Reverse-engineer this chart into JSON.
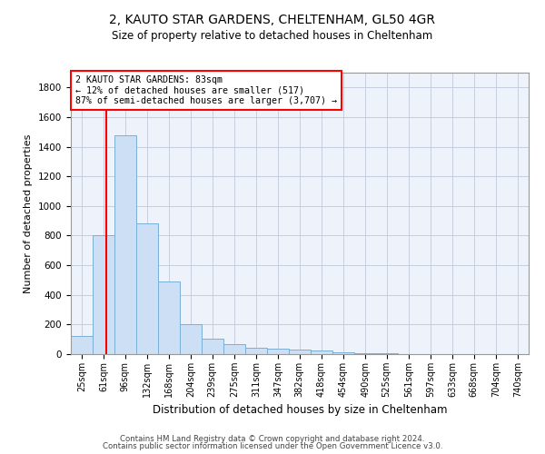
{
  "title": "2, KAUTO STAR GARDENS, CHELTENHAM, GL50 4GR",
  "subtitle": "Size of property relative to detached houses in Cheltenham",
  "xlabel": "Distribution of detached houses by size in Cheltenham",
  "ylabel": "Number of detached properties",
  "bar_color": "#ccdff5",
  "bar_edge_color": "#7aafd4",
  "bg_color": "#eef2fa",
  "grid_color": "#c0c8d8",
  "vline_x": 83,
  "vline_color": "red",
  "annotation_text": "2 KAUTO STAR GARDENS: 83sqm\n← 12% of detached houses are smaller (517)\n87% of semi-detached houses are larger (3,707) →",
  "categories": [
    "25sqm",
    "61sqm",
    "96sqm",
    "132sqm",
    "168sqm",
    "204sqm",
    "239sqm",
    "275sqm",
    "311sqm",
    "347sqm",
    "382sqm",
    "418sqm",
    "454sqm",
    "490sqm",
    "525sqm",
    "561sqm",
    "597sqm",
    "633sqm",
    "668sqm",
    "704sqm",
    "740sqm"
  ],
  "bin_edges": [
    25,
    61,
    96,
    132,
    168,
    204,
    239,
    275,
    311,
    347,
    382,
    418,
    454,
    490,
    525,
    561,
    597,
    633,
    668,
    704,
    740
  ],
  "bin_width": 36,
  "values": [
    120,
    800,
    1480,
    880,
    490,
    205,
    105,
    65,
    45,
    35,
    30,
    22,
    15,
    7,
    5,
    3,
    2,
    2,
    1,
    1,
    2
  ],
  "ylim": [
    0,
    1900
  ],
  "yticks": [
    0,
    200,
    400,
    600,
    800,
    1000,
    1200,
    1400,
    1600,
    1800
  ],
  "footer1": "Contains HM Land Registry data © Crown copyright and database right 2024.",
  "footer2": "Contains public sector information licensed under the Open Government Licence v3.0."
}
